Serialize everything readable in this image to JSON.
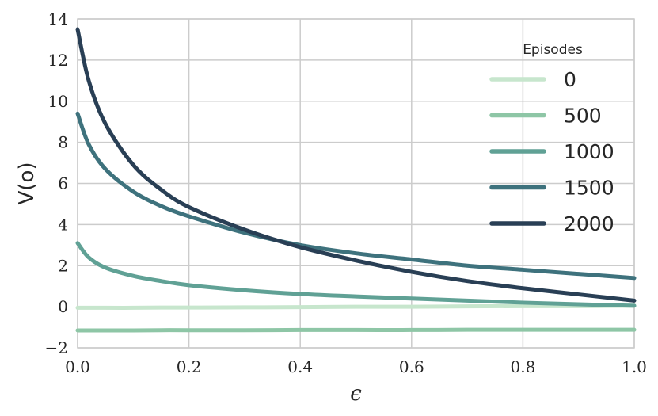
{
  "chart_data": {
    "type": "line",
    "xlabel": "ϵ",
    "ylabel": "V(o)",
    "xlim": [
      0.0,
      1.0
    ],
    "ylim": [
      -2,
      14
    ],
    "grid": true,
    "x_ticks": [
      0.0,
      0.2,
      0.4,
      0.6,
      0.8,
      1.0
    ],
    "x_tick_labels": [
      "0.0",
      "0.2",
      "0.4",
      "0.6",
      "0.8",
      "1.0"
    ],
    "y_ticks": [
      -2,
      0,
      2,
      4,
      6,
      8,
      10,
      12,
      14
    ],
    "y_tick_labels": [
      "−2",
      "0",
      "2",
      "4",
      "6",
      "8",
      "10",
      "12",
      "14"
    ],
    "legend": {
      "title": "Episodes",
      "placement": "top-right"
    },
    "x": [
      0.0,
      0.02,
      0.05,
      0.1,
      0.15,
      0.2,
      0.3,
      0.4,
      0.5,
      0.6,
      0.7,
      0.8,
      0.9,
      1.0
    ],
    "series": [
      {
        "name": "0",
        "color": "#c7e6cd",
        "values": [
          -0.05,
          -0.05,
          -0.05,
          -0.05,
          -0.04,
          -0.04,
          -0.03,
          -0.02,
          0.0,
          0.0,
          0.02,
          0.03,
          0.03,
          0.05
        ]
      },
      {
        "name": "500",
        "color": "#8ec6a6",
        "values": [
          -1.15,
          -1.15,
          -1.15,
          -1.15,
          -1.14,
          -1.14,
          -1.14,
          -1.13,
          -1.13,
          -1.13,
          -1.12,
          -1.12,
          -1.12,
          -1.12
        ]
      },
      {
        "name": "1000",
        "color": "#60a195",
        "values": [
          3.1,
          2.4,
          1.9,
          1.5,
          1.25,
          1.05,
          0.8,
          0.62,
          0.5,
          0.4,
          0.3,
          0.2,
          0.12,
          0.05
        ]
      },
      {
        "name": "1500",
        "color": "#3e727d",
        "values": [
          9.4,
          7.9,
          6.7,
          5.6,
          4.9,
          4.4,
          3.6,
          3.0,
          2.6,
          2.3,
          2.0,
          1.8,
          1.6,
          1.4
        ]
      },
      {
        "name": "2000",
        "color": "#293f55",
        "values": [
          13.5,
          11.0,
          8.9,
          6.9,
          5.7,
          4.85,
          3.75,
          2.9,
          2.25,
          1.7,
          1.25,
          0.9,
          0.6,
          0.3
        ]
      }
    ]
  }
}
